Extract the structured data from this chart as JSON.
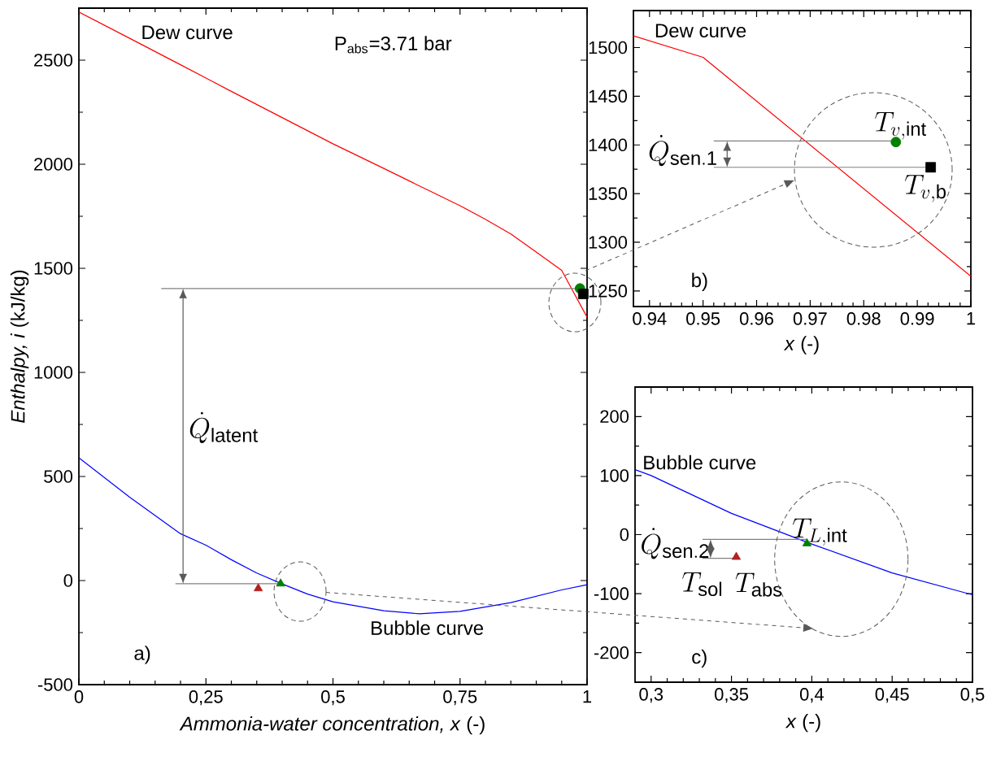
{
  "chart_data": [
    {
      "type": "line",
      "xlabel": "*Ammonia-water concentration, x* (-)",
      "ylabel": "*Enthalpy, i* (kJ/kg)",
      "xlim": [
        0,
        1
      ],
      "ylim": [
        -500,
        2750
      ],
      "xticks": [
        0,
        {
          "value": 0.25,
          "label": "0,25"
        },
        {
          "value": 0.5,
          "label": "0,5"
        },
        {
          "value": 0.75,
          "label": "0,75"
        },
        1
      ],
      "yticks": [
        -500,
        0,
        500,
        1000,
        1500,
        2000,
        2500
      ],
      "series": [
        {
          "name": "Dew curve",
          "color": "#ff0000",
          "x": [
            0,
            0.1,
            0.2,
            0.3,
            0.4,
            0.5,
            0.6,
            0.7,
            0.75,
            0.8,
            0.85,
            0.9,
            0.95,
            1
          ],
          "values": [
            2731,
            2605,
            2478,
            2350,
            2224,
            2098,
            1980,
            1860,
            1801,
            1735,
            1665,
            1578,
            1490,
            1265
          ]
        },
        {
          "name": "Bubble curve",
          "color": "#0000ff",
          "x": [
            0,
            0.1,
            0.2,
            0.25,
            0.3,
            0.35,
            0.4,
            0.45,
            0.5,
            0.6,
            0.67,
            0.75,
            0.85,
            0.95,
            1
          ],
          "values": [
            590,
            400,
            225,
            170,
            100,
            36,
            -16,
            -65,
            -102,
            -145,
            -160,
            -148,
            -106,
            -45,
            -20
          ]
        },
        {
          "color": "#808080",
          "x": [
            0.162,
            0.99
          ],
          "values": [
            1403,
            1403
          ]
        },
        {
          "color": "#808080",
          "x": [
            0.19,
            0.397
          ],
          "values": [
            -15,
            -15
          ]
        },
        {
          "type": "scatter",
          "marker": "circle",
          "color": "#008000",
          "x": [
            0.986
          ],
          "values": [
            1403
          ]
        },
        {
          "type": "scatter",
          "marker": "square",
          "color": "#000000",
          "x": [
            0.9925
          ],
          "values": [
            1377
          ]
        },
        {
          "type": "scatter",
          "marker": "triangle",
          "color": "#008000",
          "x": [
            0.397
          ],
          "values": [
            -15
          ]
        },
        {
          "type": "scatter",
          "marker": "triangle",
          "color": "#b22222",
          "x": [
            0.353
          ],
          "values": [
            -38
          ]
        }
      ],
      "annotations": [
        "P$_{abs}$=3.71 bar",
        "\\dot{Q}_{\\mathrm{latent}}",
        "a)"
      ]
    },
    {
      "type": "line",
      "xlabel": "*x* (-)",
      "xlim": [
        0.937,
        1
      ],
      "ylim": [
        1234,
        1538
      ],
      "xticks": [
        0.94,
        0.95,
        0.96,
        0.97,
        0.98,
        0.99,
        1
      ],
      "yticks": [
        1250,
        1300,
        1350,
        1400,
        1450,
        1500
      ],
      "series": [
        {
          "name": "Dew curve",
          "color": "#ff0000",
          "x": [
            0.937,
            0.95,
            1
          ],
          "values": [
            1512,
            1490,
            1265
          ]
        },
        {
          "color": "#808080",
          "x": [
            0.952,
            0.986
          ],
          "values": [
            1404,
            1404
          ]
        },
        {
          "color": "#808080",
          "x": [
            0.952,
            0.9925
          ],
          "values": [
            1377,
            1377
          ]
        },
        {
          "type": "scatter",
          "marker": "circle",
          "color": "#008000",
          "x": [
            0.986
          ],
          "values": [
            1403
          ]
        },
        {
          "type": "scatter",
          "marker": "square",
          "color": "#000000",
          "x": [
            0.9925
          ],
          "values": [
            1377
          ]
        }
      ],
      "annotations": [
        "\\dot{Q}_{\\mathrm{sen.1}}",
        {
          "text": "T_{v,\\mathrm{int}}",
          "x": 0.986,
          "y": 1403
        },
        {
          "text": "T_{v,\\mathrm{b}}",
          "x": 0.9925,
          "y": 1377
        },
        "b)"
      ]
    },
    {
      "type": "line",
      "xlabel": "*x* (-)",
      "xlim": [
        0.29,
        0.5
      ],
      "ylim": [
        -250,
        250
      ],
      "xticks": [
        {
          "value": 0.3,
          "label": "0,3"
        },
        {
          "value": 0.35,
          "label": "0,35"
        },
        {
          "value": 0.4,
          "label": "0,4"
        },
        {
          "value": 0.45,
          "label": "0,45"
        },
        {
          "value": 0.5,
          "label": "0,5"
        }
      ],
      "yticks": [
        -200,
        -100,
        0,
        100,
        200
      ],
      "series": [
        {
          "name": "Bubble curve",
          "color": "#0000ff",
          "x": [
            0.29,
            0.3,
            0.35,
            0.4,
            0.45,
            0.5
          ],
          "values": [
            110,
            100,
            36,
            -16,
            -65,
            -102
          ]
        },
        {
          "color": "#808080",
          "x": [
            0.332,
            0.397
          ],
          "values": [
            -8,
            -8
          ]
        },
        {
          "color": "#808080",
          "x": [
            0.332,
            0.353
          ],
          "values": [
            -40,
            -40
          ]
        },
        {
          "type": "scatter",
          "marker": "triangle",
          "color": "#008000",
          "x": [
            0.397
          ],
          "values": [
            -15
          ]
        },
        {
          "type": "scatter",
          "marker": "triangle",
          "color": "#b22222",
          "x": [
            0.353
          ],
          "values": [
            -38
          ]
        }
      ],
      "annotations": [
        "\\dot{Q}_{\\mathrm{sen.2}}",
        {
          "text": "T_{L,\\mathrm{int}}",
          "x": 0.397,
          "y": -15
        },
        "T_{\\mathrm{sol}}",
        {
          "text": "T_{\\mathrm{abs}}",
          "x": 0.353,
          "y": -38
        },
        "c)"
      ]
    }
  ]
}
